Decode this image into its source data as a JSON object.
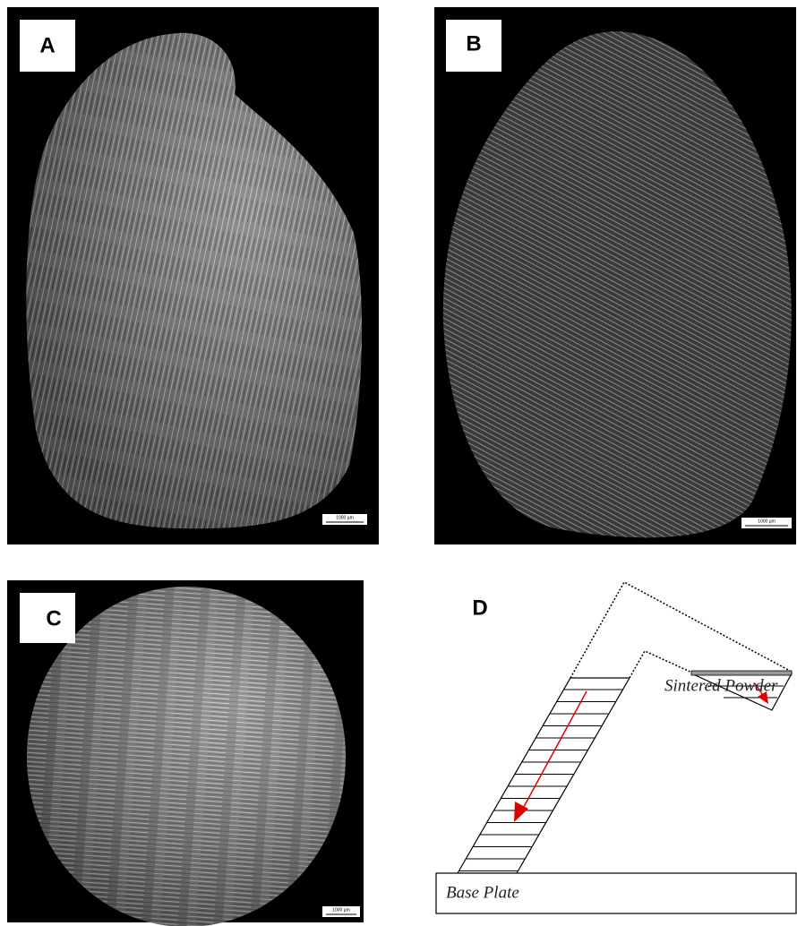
{
  "panels": [
    {
      "label": "A",
      "scale_bar": "1000 µm"
    },
    {
      "label": "B",
      "scale_bar": "1000 µm"
    },
    {
      "label": "C",
      "scale_bar": "1000 µm"
    }
  ],
  "diagram": {
    "label": "D",
    "powder_label": "Sintered Powder",
    "base_label": "Base Plate"
  }
}
